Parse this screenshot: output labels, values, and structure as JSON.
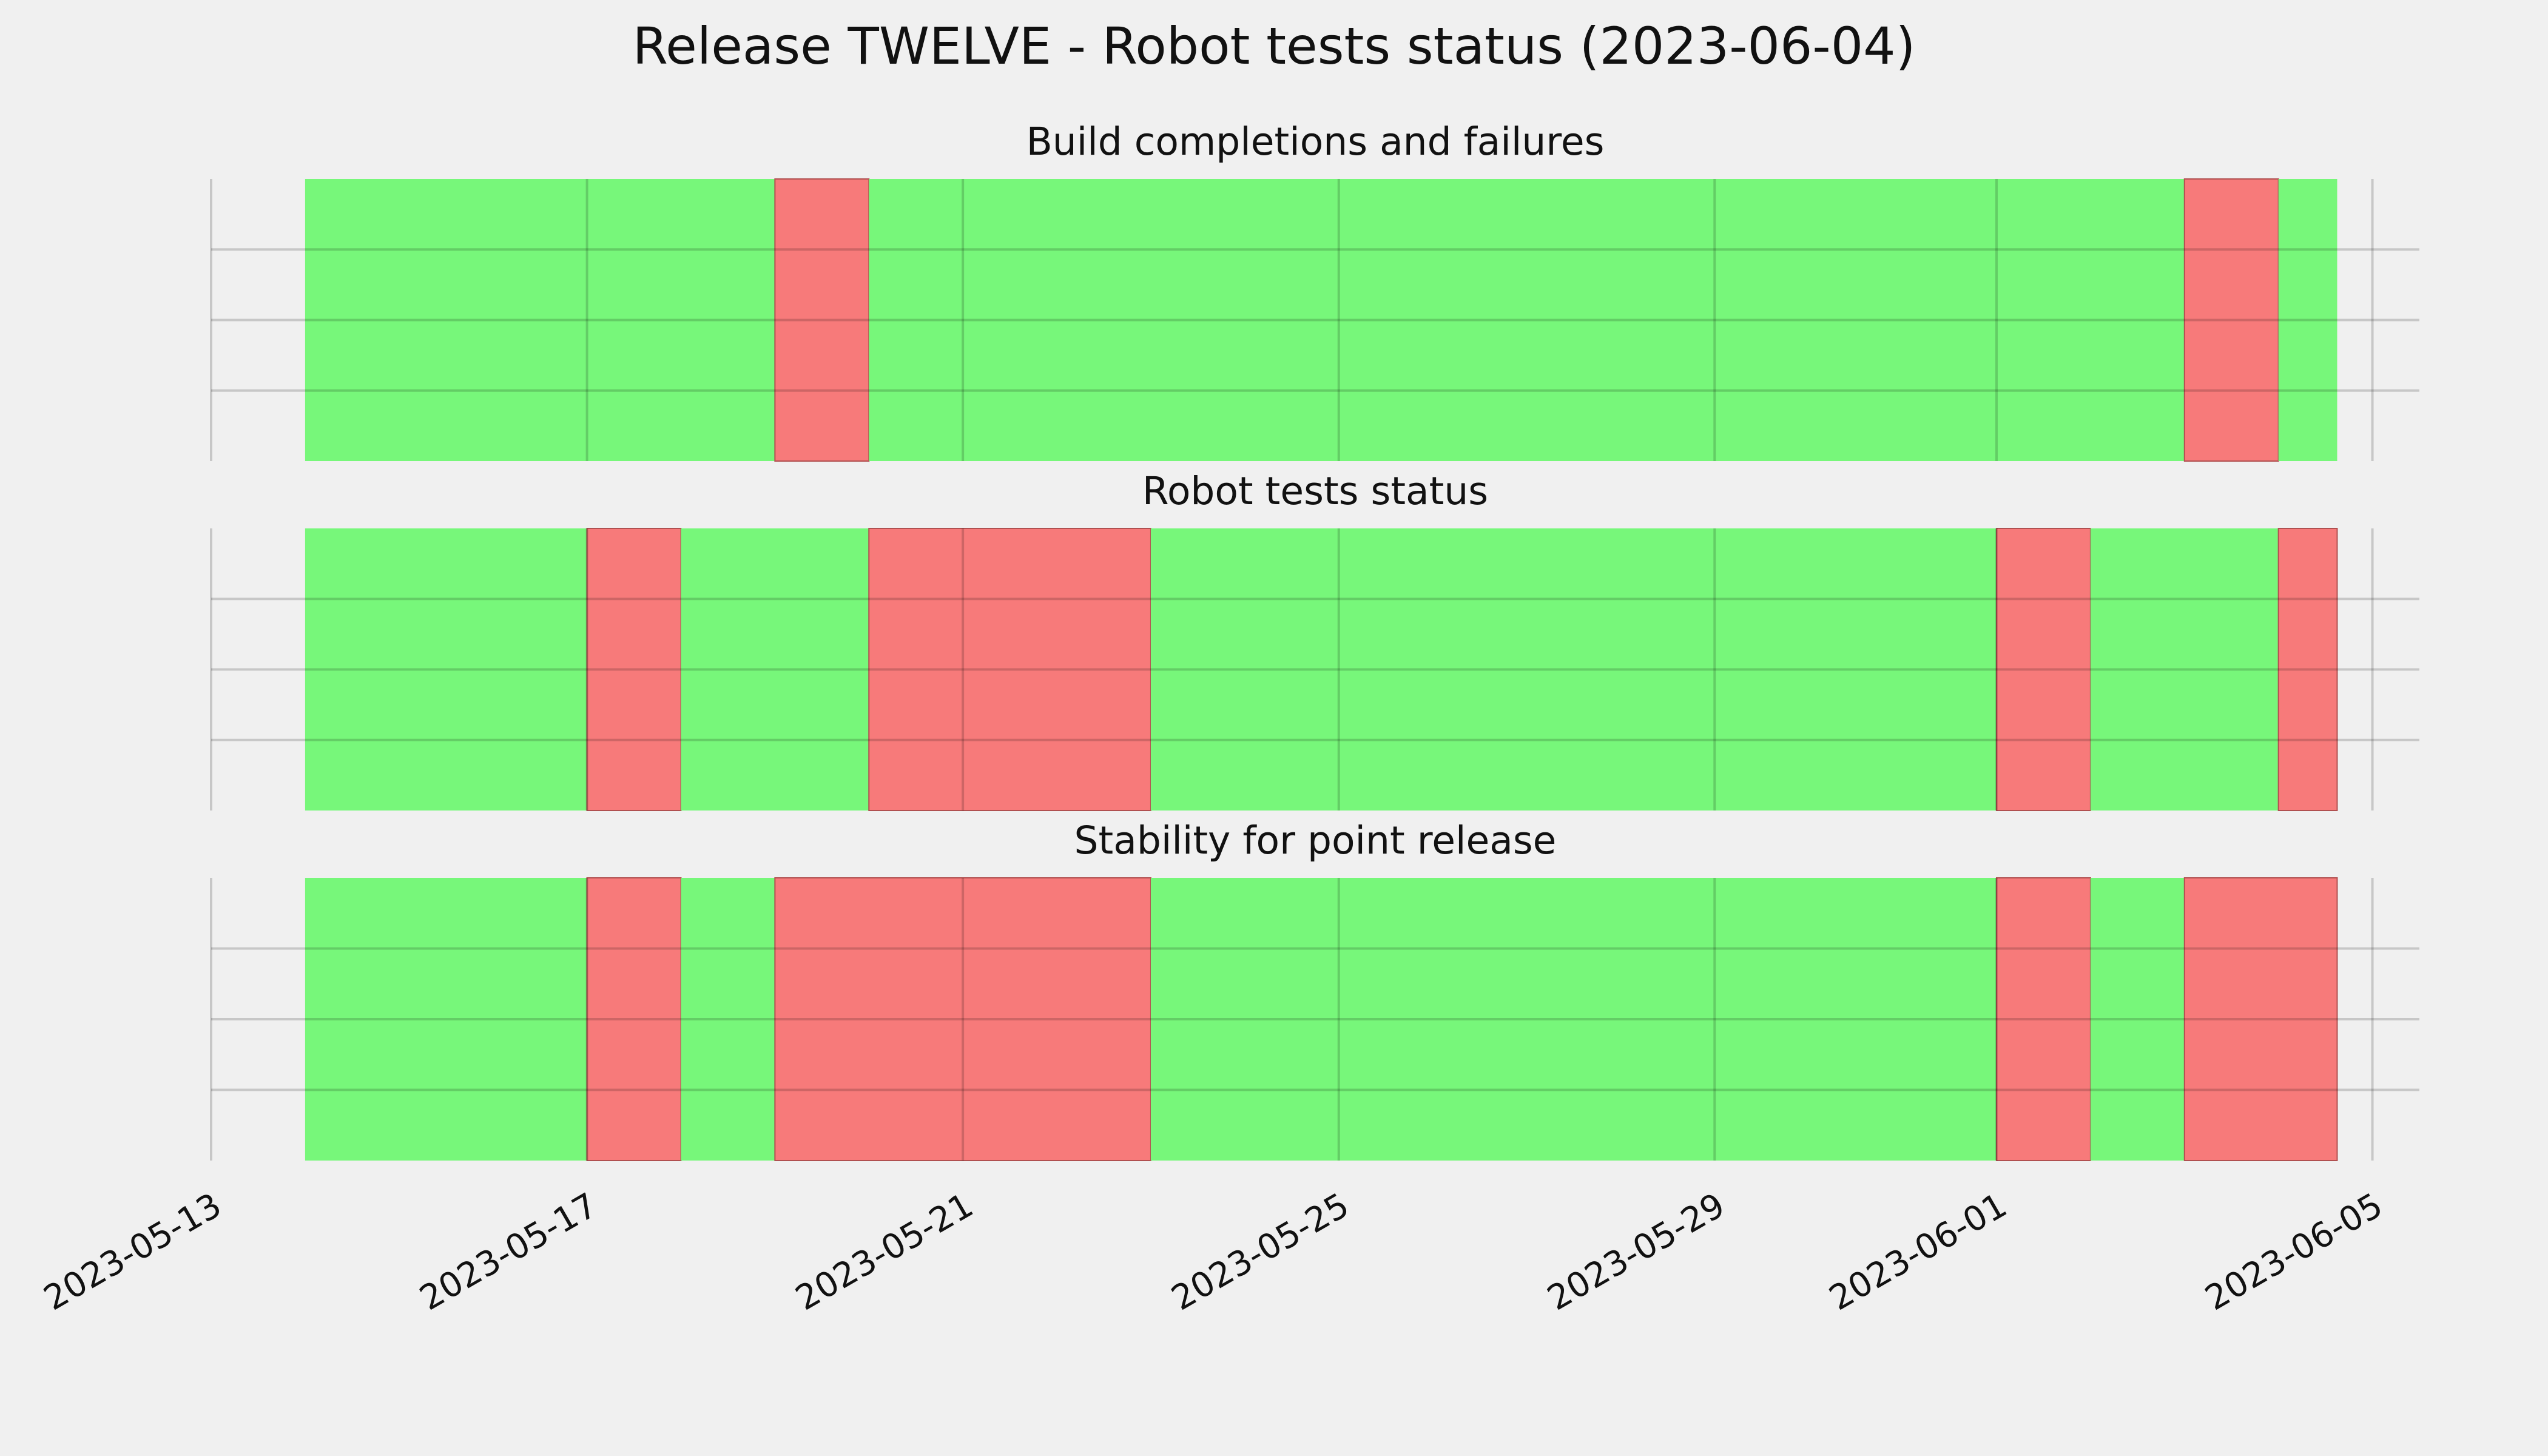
{
  "title": "Release TWELVE - Robot tests status (2023-06-04)",
  "chart_data": {
    "type": "timeline",
    "x_axis": {
      "kind": "date",
      "range": [
        "2023-05-13",
        "2023-06-05T12:00"
      ],
      "tick_labels": [
        "2023-05-13",
        "2023-05-17",
        "2023-05-21",
        "2023-05-25",
        "2023-05-29",
        "2023-06-01",
        "2023-06-05"
      ],
      "grid": true
    },
    "y_axis": {
      "tick_labels": false,
      "grid": true
    },
    "colors": {
      "pass": "#77f77a",
      "fail": "#f77a7a",
      "background": "#f0f0f0",
      "grid": "#cbcbcb"
    },
    "panels": [
      {
        "title": "Build completions and failures",
        "segments": [
          {
            "start": "2023-05-14",
            "end": "2023-05-17",
            "status": "pass"
          },
          {
            "start": "2023-05-17",
            "end": "2023-05-19",
            "status": "pass"
          },
          {
            "start": "2023-05-19",
            "end": "2023-05-20",
            "status": "fail"
          },
          {
            "start": "2023-05-20",
            "end": "2023-06-03",
            "status": "pass"
          },
          {
            "start": "2023-06-03",
            "end": "2023-06-04",
            "status": "fail"
          },
          {
            "start": "2023-06-04",
            "end": "2023-06-04T15:00",
            "status": "pass"
          }
        ]
      },
      {
        "title": "Robot tests status",
        "segments": [
          {
            "start": "2023-05-14",
            "end": "2023-05-17",
            "status": "pass"
          },
          {
            "start": "2023-05-17",
            "end": "2023-05-18",
            "status": "fail"
          },
          {
            "start": "2023-05-18",
            "end": "2023-05-20",
            "status": "pass"
          },
          {
            "start": "2023-05-20",
            "end": "2023-05-23",
            "status": "fail"
          },
          {
            "start": "2023-05-23",
            "end": "2023-06-01",
            "status": "pass"
          },
          {
            "start": "2023-06-01",
            "end": "2023-06-02",
            "status": "fail"
          },
          {
            "start": "2023-06-02",
            "end": "2023-06-04",
            "status": "pass"
          },
          {
            "start": "2023-06-04",
            "end": "2023-06-04T15:00",
            "status": "fail"
          }
        ]
      },
      {
        "title": "Stability for point release",
        "segments": [
          {
            "start": "2023-05-14",
            "end": "2023-05-17",
            "status": "pass"
          },
          {
            "start": "2023-05-17",
            "end": "2023-05-18",
            "status": "fail"
          },
          {
            "start": "2023-05-18",
            "end": "2023-05-19",
            "status": "pass"
          },
          {
            "start": "2023-05-19",
            "end": "2023-05-23",
            "status": "fail"
          },
          {
            "start": "2023-05-23",
            "end": "2023-06-01",
            "status": "pass"
          },
          {
            "start": "2023-06-01",
            "end": "2023-06-02",
            "status": "fail"
          },
          {
            "start": "2023-06-02",
            "end": "2023-06-03",
            "status": "pass"
          },
          {
            "start": "2023-06-03",
            "end": "2023-06-04T15:00",
            "status": "fail"
          }
        ]
      }
    ]
  }
}
